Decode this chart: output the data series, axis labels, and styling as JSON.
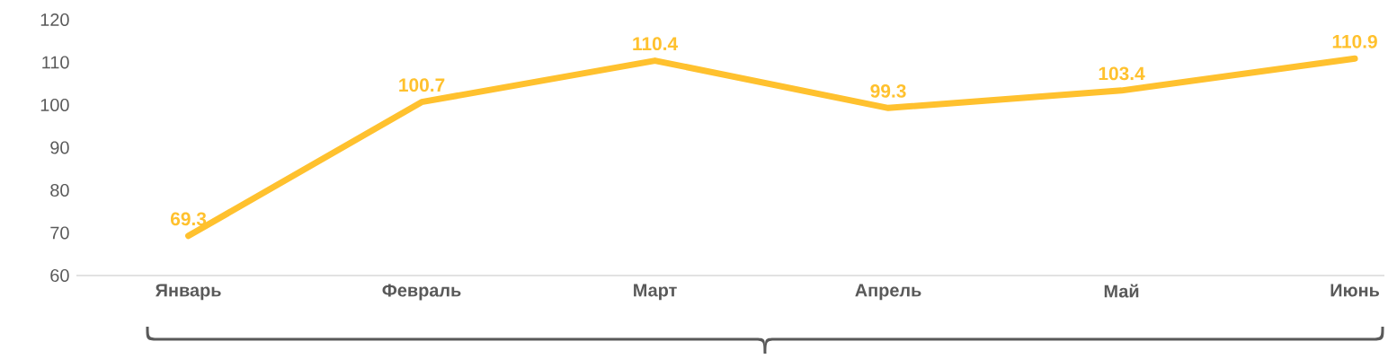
{
  "chart_data": {
    "type": "line",
    "categories": [
      "Январь",
      "Февраль",
      "Март",
      "Апрель",
      "Май",
      "Июнь"
    ],
    "values": [
      69.3,
      100.7,
      110.4,
      99.3,
      103.4,
      110.9
    ],
    "color": "#ffc12e",
    "ylim": [
      60,
      120
    ],
    "yticks": [
      60,
      70,
      80,
      90,
      100,
      110,
      120
    ],
    "data_labels": true,
    "grid": false,
    "marker": "none"
  }
}
